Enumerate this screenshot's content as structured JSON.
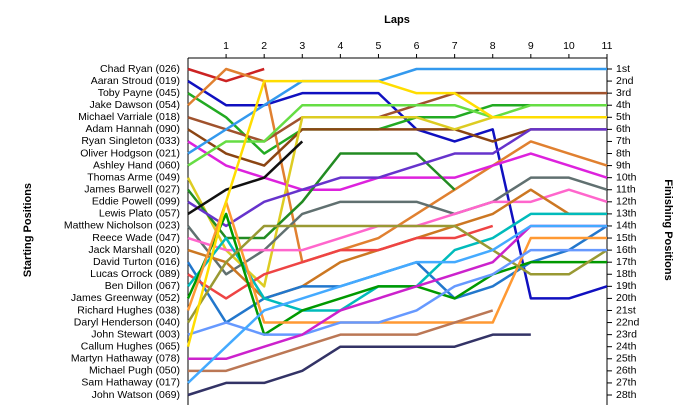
{
  "chart_data": {
    "type": "line",
    "title": "Laps",
    "y_label_left": "Starting Positions",
    "y_label_right": "Finishing Positions",
    "x": [
      0,
      1,
      2,
      3,
      4,
      5,
      6,
      7,
      8,
      9,
      10,
      11
    ],
    "xlim": [
      0,
      11
    ],
    "xticks": [
      1,
      2,
      3,
      4,
      5,
      6,
      7,
      8,
      9,
      10,
      11
    ],
    "ylim": [
      1,
      28
    ],
    "y_reversed": true,
    "yticks": [
      {
        "value": 1,
        "label": "1st"
      },
      {
        "value": 2,
        "label": "2nd"
      },
      {
        "value": 3,
        "label": "3rd"
      },
      {
        "value": 4,
        "label": "4th"
      },
      {
        "value": 5,
        "label": "5th"
      },
      {
        "value": 6,
        "label": "6th"
      },
      {
        "value": 7,
        "label": "7th"
      },
      {
        "value": 8,
        "label": "8th"
      },
      {
        "value": 9,
        "label": "9th"
      },
      {
        "value": 10,
        "label": "10th"
      },
      {
        "value": 11,
        "label": "11th"
      },
      {
        "value": 12,
        "label": "12th"
      },
      {
        "value": 13,
        "label": "13th"
      },
      {
        "value": 14,
        "label": "14th"
      },
      {
        "value": 15,
        "label": "15th"
      },
      {
        "value": 16,
        "label": "16th"
      },
      {
        "value": 17,
        "label": "17th"
      },
      {
        "value": 18,
        "label": "18th"
      },
      {
        "value": 19,
        "label": "19th"
      },
      {
        "value": 20,
        "label": "20th"
      },
      {
        "value": 21,
        "label": "21st"
      },
      {
        "value": 22,
        "label": "22nd"
      },
      {
        "value": 23,
        "label": "23rd"
      },
      {
        "value": 24,
        "label": "24th"
      },
      {
        "value": 25,
        "label": "25th"
      },
      {
        "value": 26,
        "label": "26th"
      },
      {
        "value": 27,
        "label": "27th"
      },
      {
        "value": 28,
        "label": "28th"
      }
    ],
    "series": [
      {
        "name": "Chad Ryan (026)",
        "color": "#cc2222",
        "values": [
          1,
          2,
          1,
          null,
          null,
          null,
          null,
          null,
          null,
          null,
          null,
          null
        ]
      },
      {
        "name": "Aaran Stroud (019)",
        "color": "#1010c0",
        "values": [
          2,
          4,
          4,
          3,
          3,
          3,
          6,
          7,
          6,
          20,
          20,
          19
        ]
      },
      {
        "name": "Toby Payne (045)",
        "color": "#22aa22",
        "values": [
          3,
          5,
          8,
          6,
          6,
          6,
          5,
          5,
          4,
          4,
          4,
          4
        ]
      },
      {
        "name": "Jake Dawson (054)",
        "color": "#e08030",
        "values": [
          4,
          1,
          2,
          17,
          16,
          15,
          13,
          11,
          9,
          7,
          8,
          9
        ]
      },
      {
        "name": "Michael Varriale (018)",
        "color": "#a0522d",
        "values": [
          5,
          6,
          7,
          5,
          5,
          5,
          4,
          3,
          3,
          3,
          3,
          3
        ]
      },
      {
        "name": "Adam Hannah (090)",
        "color": "#8b4513",
        "values": [
          6,
          8,
          9,
          6,
          6,
          6,
          6,
          6,
          7,
          6,
          6,
          6
        ]
      },
      {
        "name": "Ryan Singleton (033)",
        "color": "#dd22dd",
        "values": [
          7,
          9,
          10,
          11,
          11,
          10,
          10,
          10,
          9,
          8,
          9,
          10
        ]
      },
      {
        "name": "Oliver Hodgson (021)",
        "color": "#3399ee",
        "values": [
          8,
          6,
          4,
          2,
          2,
          2,
          1,
          1,
          1,
          1,
          1,
          1
        ]
      },
      {
        "name": "Ashley Hand (060)",
        "color": "#66dd44",
        "values": [
          9,
          7,
          7,
          4,
          4,
          4,
          4,
          4,
          5,
          4,
          4,
          4
        ]
      },
      {
        "name": "Thomas Arme (049)",
        "color": "#ddcc22",
        "values": [
          10,
          16,
          19,
          5,
          5,
          5,
          5,
          6,
          5,
          5,
          5,
          5
        ]
      },
      {
        "name": "James Barwell (027)",
        "color": "#228b22",
        "values": [
          11,
          15,
          15,
          12,
          8,
          8,
          8,
          11,
          null,
          null,
          null,
          null
        ]
      },
      {
        "name": "Eddie Powell (099)",
        "color": "#6633cc",
        "values": [
          12,
          14,
          12,
          11,
          10,
          10,
          9,
          8,
          8,
          6,
          6,
          6
        ]
      },
      {
        "name": "Lewis Plato (057)",
        "color": "#111111",
        "values": [
          13,
          11,
          10,
          7,
          null,
          null,
          null,
          null,
          null,
          null,
          null,
          null
        ]
      },
      {
        "name": "Matthew Nicholson (023)",
        "color": "#607070",
        "values": [
          14,
          18,
          16,
          13,
          12,
          12,
          12,
          13,
          12,
          10,
          10,
          11
        ]
      },
      {
        "name": "Reece Wade (047)",
        "color": "#ff66cc",
        "values": [
          15,
          16,
          16,
          16,
          15,
          14,
          14,
          13,
          12,
          12,
          11,
          12
        ]
      },
      {
        "name": "Jack Marshall (020)",
        "color": "#cc7722",
        "values": [
          16,
          17,
          20,
          19,
          17,
          16,
          15,
          14,
          13,
          11,
          13,
          13
        ]
      },
      {
        "name": "David Turton (016)",
        "color": "#2277cc",
        "values": [
          17,
          22,
          20,
          19,
          19,
          18,
          17,
          20,
          19,
          17,
          16,
          14
        ]
      },
      {
        "name": "Lucas Orrock (089)",
        "color": "#ee4444",
        "values": [
          18,
          20,
          18,
          17,
          16,
          16,
          15,
          15,
          14,
          null,
          null,
          null
        ]
      },
      {
        "name": "Ben Dillon (067)",
        "color": "#00bbbb",
        "values": [
          19,
          15,
          20,
          21,
          21,
          19,
          19,
          16,
          15,
          13,
          13,
          13
        ]
      },
      {
        "name": "James Greenway (052)",
        "color": "#009900",
        "values": [
          20,
          13,
          23,
          21,
          20,
          19,
          19,
          20,
          18,
          17,
          17,
          17
        ]
      },
      {
        "name": "Richard Hughes (038)",
        "color": "#ff9933",
        "values": [
          21,
          12,
          22,
          22,
          22,
          22,
          22,
          22,
          22,
          15,
          15,
          15
        ]
      },
      {
        "name": "Daryl Henderson (040)",
        "color": "#999933",
        "values": [
          22,
          17,
          14,
          14,
          14,
          14,
          14,
          14,
          16,
          18,
          18,
          16
        ]
      },
      {
        "name": "John Stewart (003)",
        "color": "#6699ff",
        "values": [
          23,
          22,
          23,
          23,
          22,
          22,
          21,
          19,
          18,
          16,
          16,
          16
        ]
      },
      {
        "name": "Callum Hughes (065)",
        "color": "#ffdd00",
        "values": [
          24,
          12,
          2,
          2,
          2,
          2,
          3,
          3,
          5,
          5,
          5,
          5
        ]
      },
      {
        "name": "Martyn Hathaway (078)",
        "color": "#cc22cc",
        "values": [
          25,
          25,
          24,
          23,
          21,
          20,
          19,
          18,
          17,
          14,
          14,
          14
        ]
      },
      {
        "name": "Michael Pugh (050)",
        "color": "#bb7755",
        "values": [
          26,
          26,
          25,
          24,
          23,
          23,
          23,
          22,
          21,
          null,
          null,
          null
        ]
      },
      {
        "name": "Sam Hathaway (017)",
        "color": "#44aaff",
        "values": [
          27,
          24,
          21,
          20,
          19,
          18,
          17,
          17,
          16,
          14,
          14,
          14
        ]
      },
      {
        "name": "John Watson (069)",
        "color": "#333366",
        "values": [
          28,
          27,
          27,
          26,
          24,
          24,
          24,
          24,
          23,
          23,
          null,
          null
        ]
      }
    ]
  }
}
